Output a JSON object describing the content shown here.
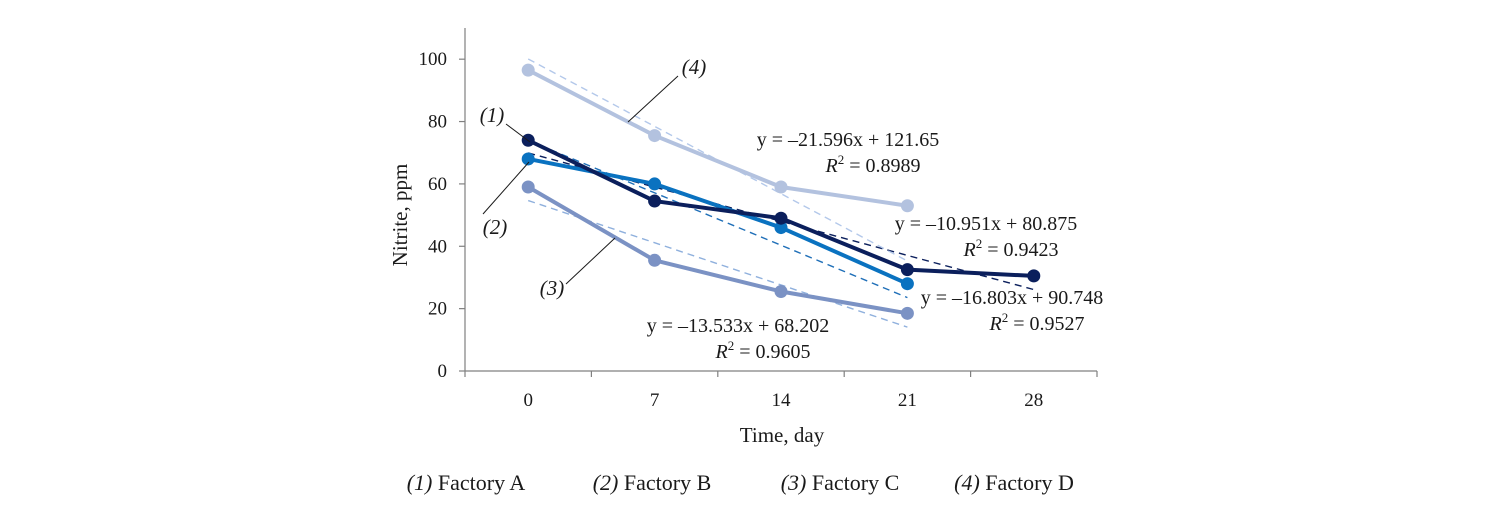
{
  "chart_data": {
    "type": "line",
    "x": [
      0,
      7,
      14,
      21,
      28
    ],
    "xlabel": "Time, day",
    "ylabel": "Nitrite, ppm",
    "xticks": [
      "0",
      "7",
      "14",
      "21",
      "28"
    ],
    "yticks": [
      "0",
      "20",
      "40",
      "60",
      "80",
      "100"
    ],
    "ylim": [
      0,
      110
    ],
    "grid": false,
    "series": [
      {
        "id": "1",
        "name": "Factory A",
        "callout": "(1)",
        "color": "#0b1f5c",
        "x": [
          0,
          7,
          14,
          21,
          28
        ],
        "values": [
          74,
          54.5,
          49,
          32.5,
          30.5
        ],
        "trend": {
          "slope": -10.951,
          "intercept": 80.875,
          "equation": "y = –10.951x + 80.875",
          "r2": "= 0.9423"
        }
      },
      {
        "id": "2",
        "name": "Factory B",
        "callout": "(2)",
        "color": "#0a72c0",
        "x": [
          0,
          7,
          14,
          21
        ],
        "values": [
          68,
          60,
          46,
          28
        ],
        "trend": {
          "slope": -16.803,
          "intercept": 90.748,
          "equation": "y = –16.803x + 90.748",
          "r2": "= 0.9527"
        }
      },
      {
        "id": "3",
        "name": "Factory C",
        "callout": "(3)",
        "color": "#7b92c4",
        "x": [
          0,
          7,
          14,
          21
        ],
        "values": [
          59,
          35.5,
          25.5,
          18.5
        ],
        "trend": {
          "slope": -13.533,
          "intercept": 68.202,
          "equation": "y = –13.533x + 68.202",
          "r2": "= 0.9605"
        }
      },
      {
        "id": "4",
        "name": "Factory D",
        "callout": "(4)",
        "color": "#b3c2df",
        "x": [
          0,
          7,
          14,
          21
        ],
        "values": [
          96.5,
          75.5,
          59,
          53
        ],
        "trend": {
          "slope": -21.596,
          "intercept": 121.65,
          "equation": "y = –21.596x + 121.65",
          "r2": "= 0.8989"
        }
      }
    ],
    "r2_label": "R",
    "r2_superscript": "2",
    "legend": [
      {
        "num": "(1)",
        "label": "Factory A"
      },
      {
        "num": "(2)",
        "label": "Factory B"
      },
      {
        "num": "(3)",
        "label": "Factory C"
      },
      {
        "num": "(4)",
        "label": "Factory D"
      }
    ]
  }
}
